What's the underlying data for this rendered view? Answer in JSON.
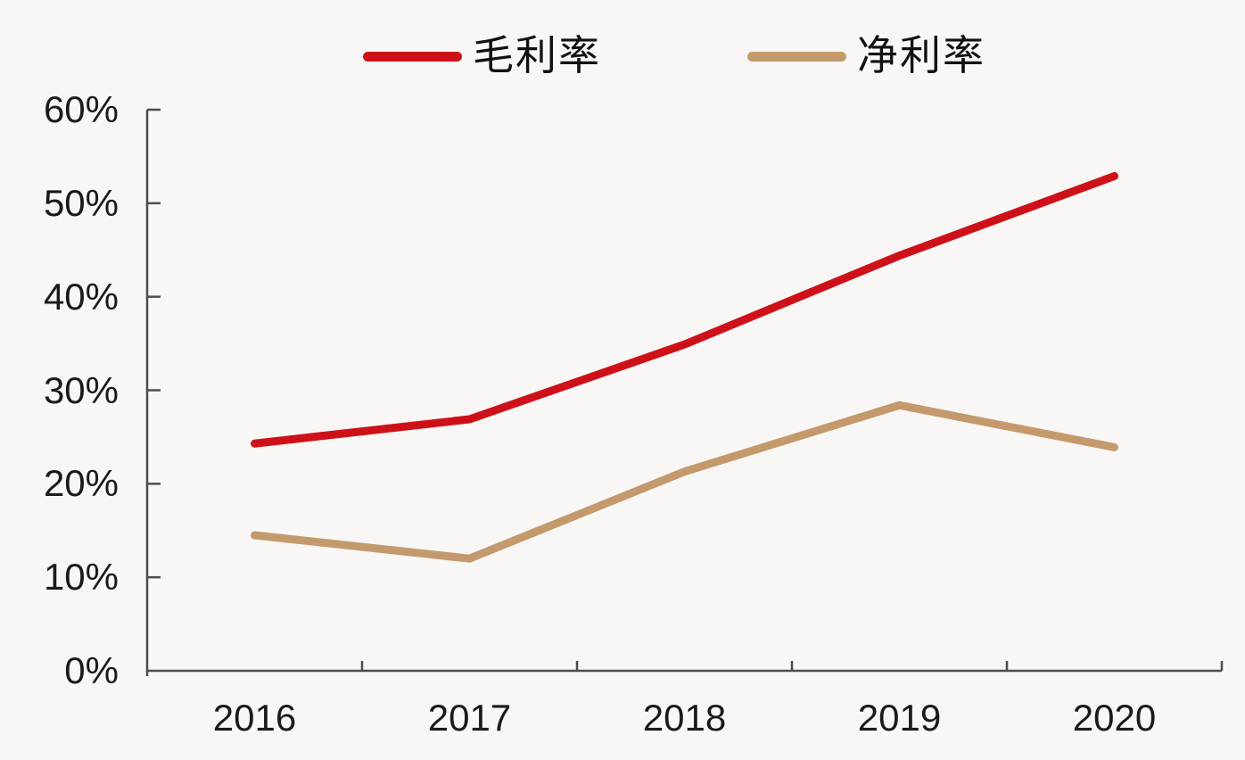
{
  "chart_data": {
    "type": "line",
    "title": "",
    "xlabel": "",
    "ylabel": "",
    "categories": [
      "2016",
      "2017",
      "2018",
      "2019",
      "2020"
    ],
    "series": [
      {
        "name": "毛利率",
        "color": "#ce1119",
        "values": [
          24.3,
          26.9,
          34.9,
          44.4,
          52.9
        ]
      },
      {
        "name": "净利率",
        "color": "#c49a6c",
        "values": [
          14.5,
          12.0,
          21.3,
          28.4,
          23.9
        ]
      }
    ],
    "value_unit": "%",
    "ylim": [
      0,
      60
    ],
    "ytick_step": 10,
    "ytick_labels": [
      "0%",
      "10%",
      "20%",
      "30%",
      "40%",
      "50%",
      "60%"
    ],
    "grid": false,
    "legend_position": "top",
    "colors": {
      "axis": "#4d4d4d",
      "tick": "#4d4d4d",
      "label": "#1a1a1a",
      "background": "#f8f7f6"
    }
  }
}
